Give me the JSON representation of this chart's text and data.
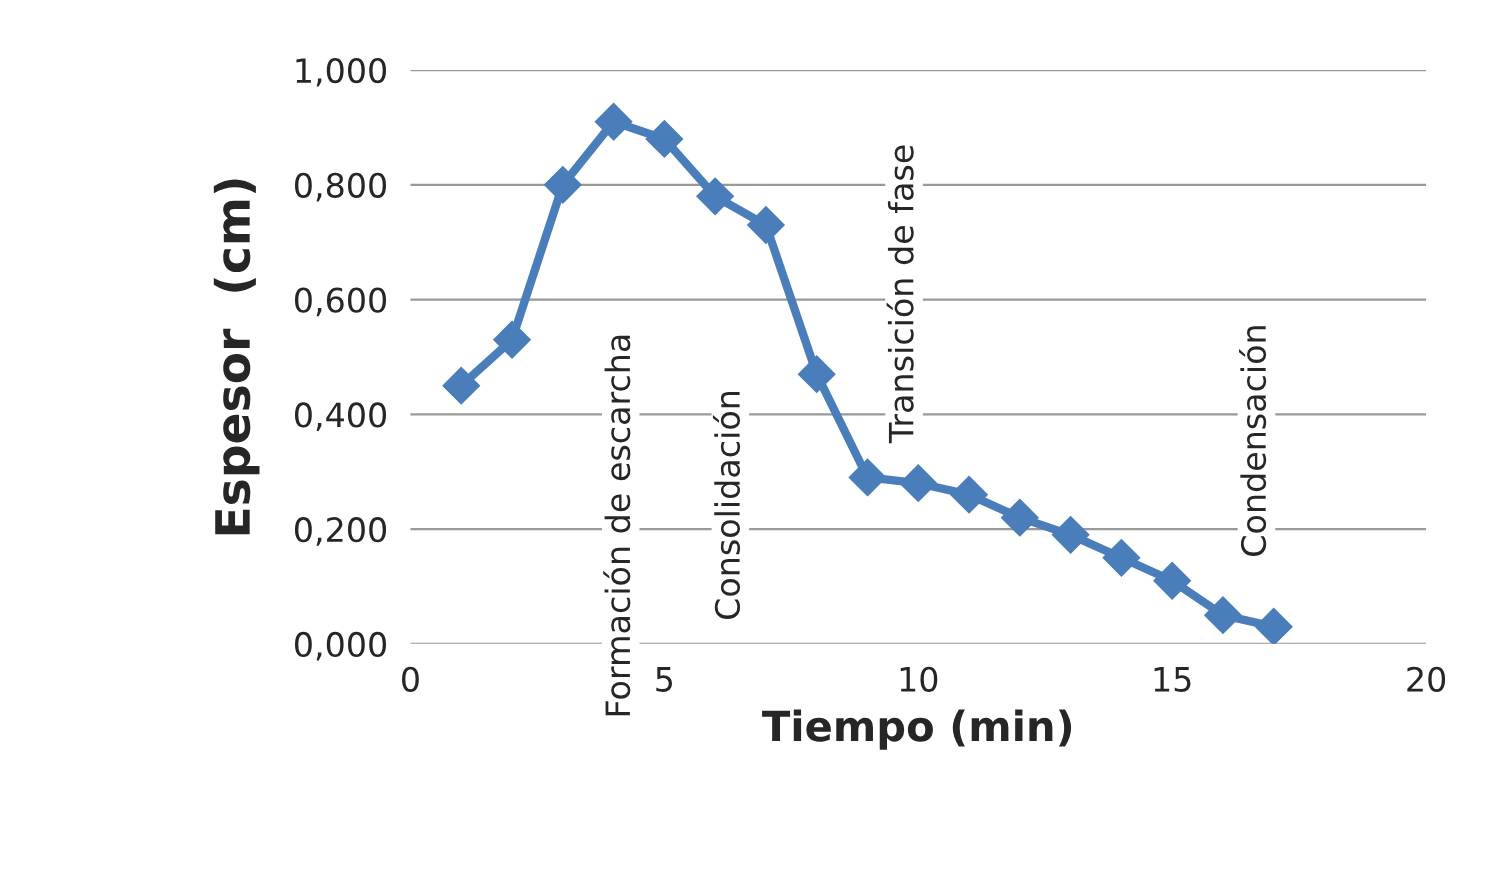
{
  "chart_data": {
    "type": "line",
    "xlabel": "Tiempo (min)",
    "ylabel": "Espesor  (cm)",
    "x": [
      1,
      2,
      3,
      4,
      5,
      6,
      7,
      8,
      9,
      10,
      11,
      12,
      13,
      14,
      15,
      16,
      17
    ],
    "series": [
      {
        "color": "#4a7ebb",
        "values": [
          0.45,
          0.53,
          0.8,
          0.91,
          0.88,
          0.78,
          0.73,
          0.47,
          0.29,
          0.28,
          0.26,
          0.22,
          0.19,
          0.15,
          0.11,
          0.05,
          0.03
        ]
      }
    ],
    "xlim": [
      0,
      20
    ],
    "xticks": [
      0,
      5,
      10,
      15,
      20
    ],
    "ylim": [
      0,
      1
    ],
    "yticks": [
      {
        "value": 0,
        "label": "0,000"
      },
      {
        "value": 0.2,
        "label": "0,200"
      },
      {
        "value": 0.4,
        "label": "0,400"
      },
      {
        "value": 0.6,
        "label": "0,600"
      },
      {
        "value": 0.8,
        "label": "0,800"
      },
      {
        "value": 1,
        "label": "1,000"
      }
    ],
    "grid": "y",
    "marker": "diamond",
    "line_style": "solid",
    "legend": false,
    "annotations": [
      "Formación de escarcha",
      "Consolidación",
      "Transición de fase",
      "Condensación"
    ]
  }
}
